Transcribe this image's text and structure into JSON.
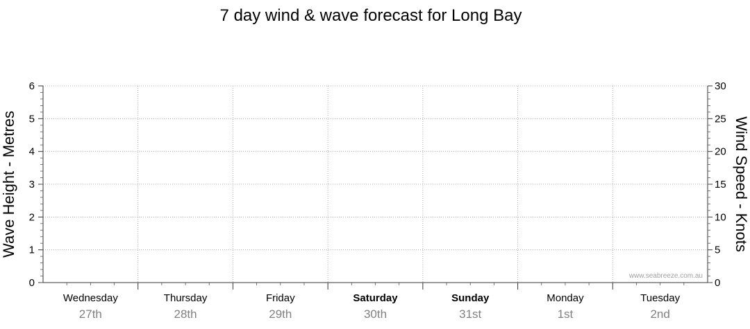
{
  "chart_data": {
    "type": "line",
    "title": "7 day wind & wave forecast for Long Bay",
    "y_left": {
      "label": "Wave Height - Metres",
      "range": [
        0,
        6
      ],
      "ticks": [
        "0",
        "1",
        "2",
        "3",
        "4",
        "5",
        "6"
      ]
    },
    "y_right": {
      "label": "Wind Speed - Knots",
      "range": [
        0,
        30
      ],
      "ticks": [
        "0",
        "5",
        "10",
        "15",
        "20",
        "25",
        "30"
      ]
    },
    "days": [
      {
        "name": "Wednesday",
        "date": "27th",
        "bold": false
      },
      {
        "name": "Thursday",
        "date": "28th",
        "bold": false
      },
      {
        "name": "Friday",
        "date": "29th",
        "bold": false
      },
      {
        "name": "Saturday",
        "date": "30th",
        "bold": true
      },
      {
        "name": "Sunday",
        "date": "31st",
        "bold": true
      },
      {
        "name": "Monday",
        "date": "1st",
        "bold": false
      },
      {
        "name": "Tuesday",
        "date": "2nd",
        "bold": false
      }
    ],
    "grid": true,
    "series": [],
    "watermark": "www.seabreeze.com.au"
  }
}
